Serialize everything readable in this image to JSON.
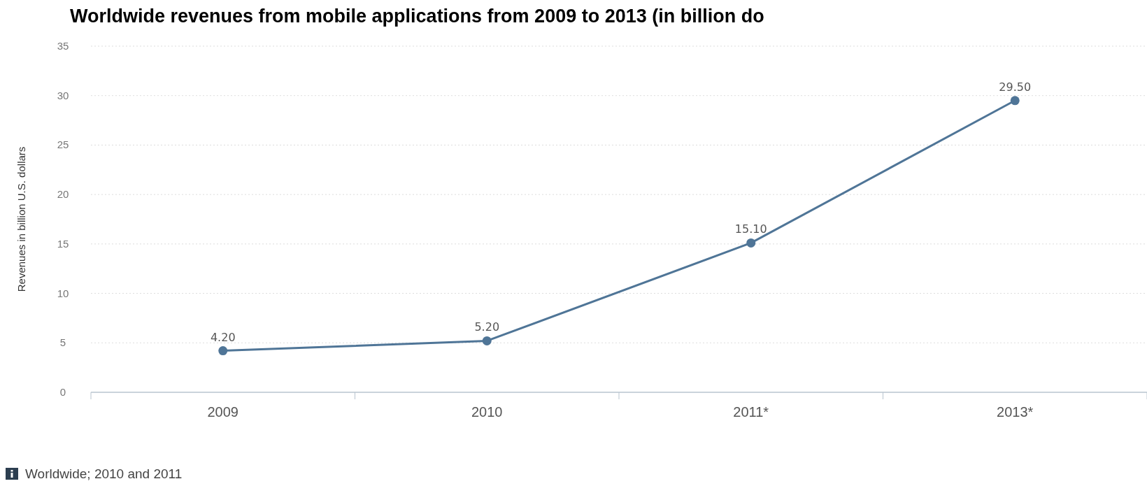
{
  "chart_data": {
    "type": "line",
    "title": "Worldwide revenues from mobile applications from 2009 to 2013 (in billion do",
    "ylabel": "Revenues in billion U.S. dollars",
    "categories": [
      "2009",
      "2010",
      "2011*",
      "2013*"
    ],
    "series": [
      {
        "color": "#4f7597",
        "values": [
          4.2,
          5.2,
          15.1,
          29.5
        ],
        "value_labels": [
          "4.20",
          "5.20",
          "15.10",
          "29.50"
        ]
      }
    ],
    "ylim": [
      0,
      35
    ],
    "yticks": [
      0,
      5,
      10,
      15,
      20,
      25,
      30,
      35
    ],
    "grid": "y",
    "marker": "circle",
    "line_style": "solid",
    "annotations": [
      "Worldwide; 2010 and 2011"
    ]
  }
}
